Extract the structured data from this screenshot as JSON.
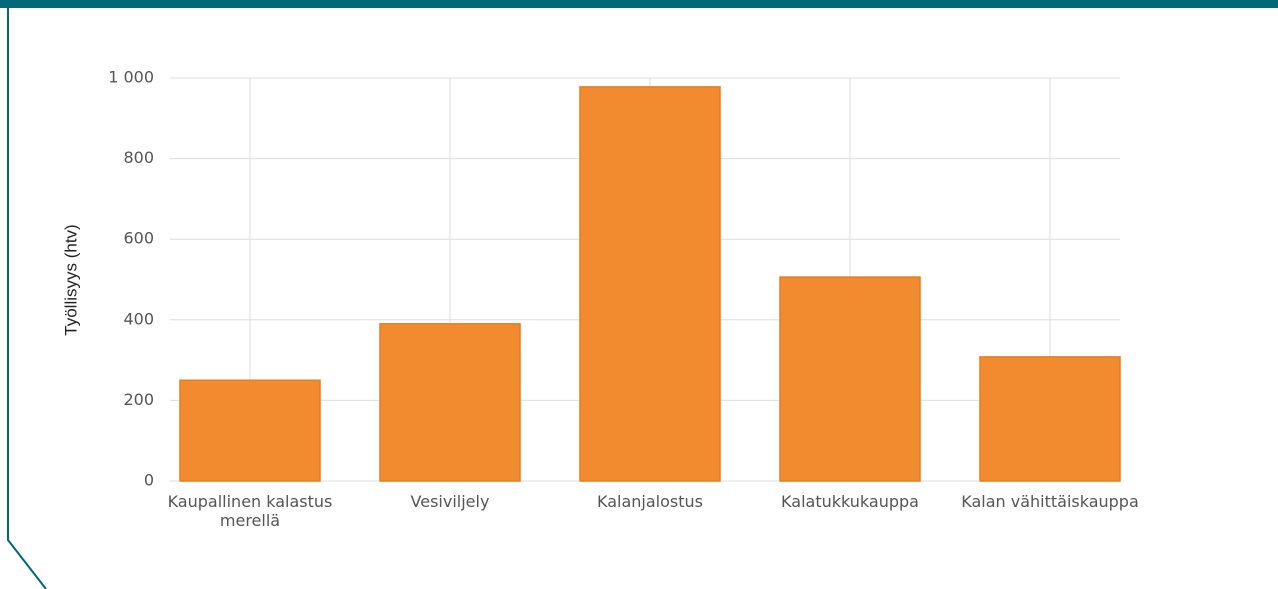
{
  "chart_data": {
    "type": "bar",
    "y_axis_label": "Työllisyys (htv)",
    "categories": [
      "Kaupallinen kalastus merellä",
      "Vesiviljely",
      "Kalanjalostus",
      "Kalatukkukauppa",
      "Kalan vähittäiskauppa"
    ],
    "values": [
      250,
      390,
      978,
      506,
      308
    ],
    "color": "#f28a30",
    "ylim": [
      0,
      1000
    ],
    "yticks": [
      0,
      200,
      400,
      600,
      800,
      {
        "value": 1000,
        "label": "1 000"
      }
    ],
    "grid": true
  }
}
